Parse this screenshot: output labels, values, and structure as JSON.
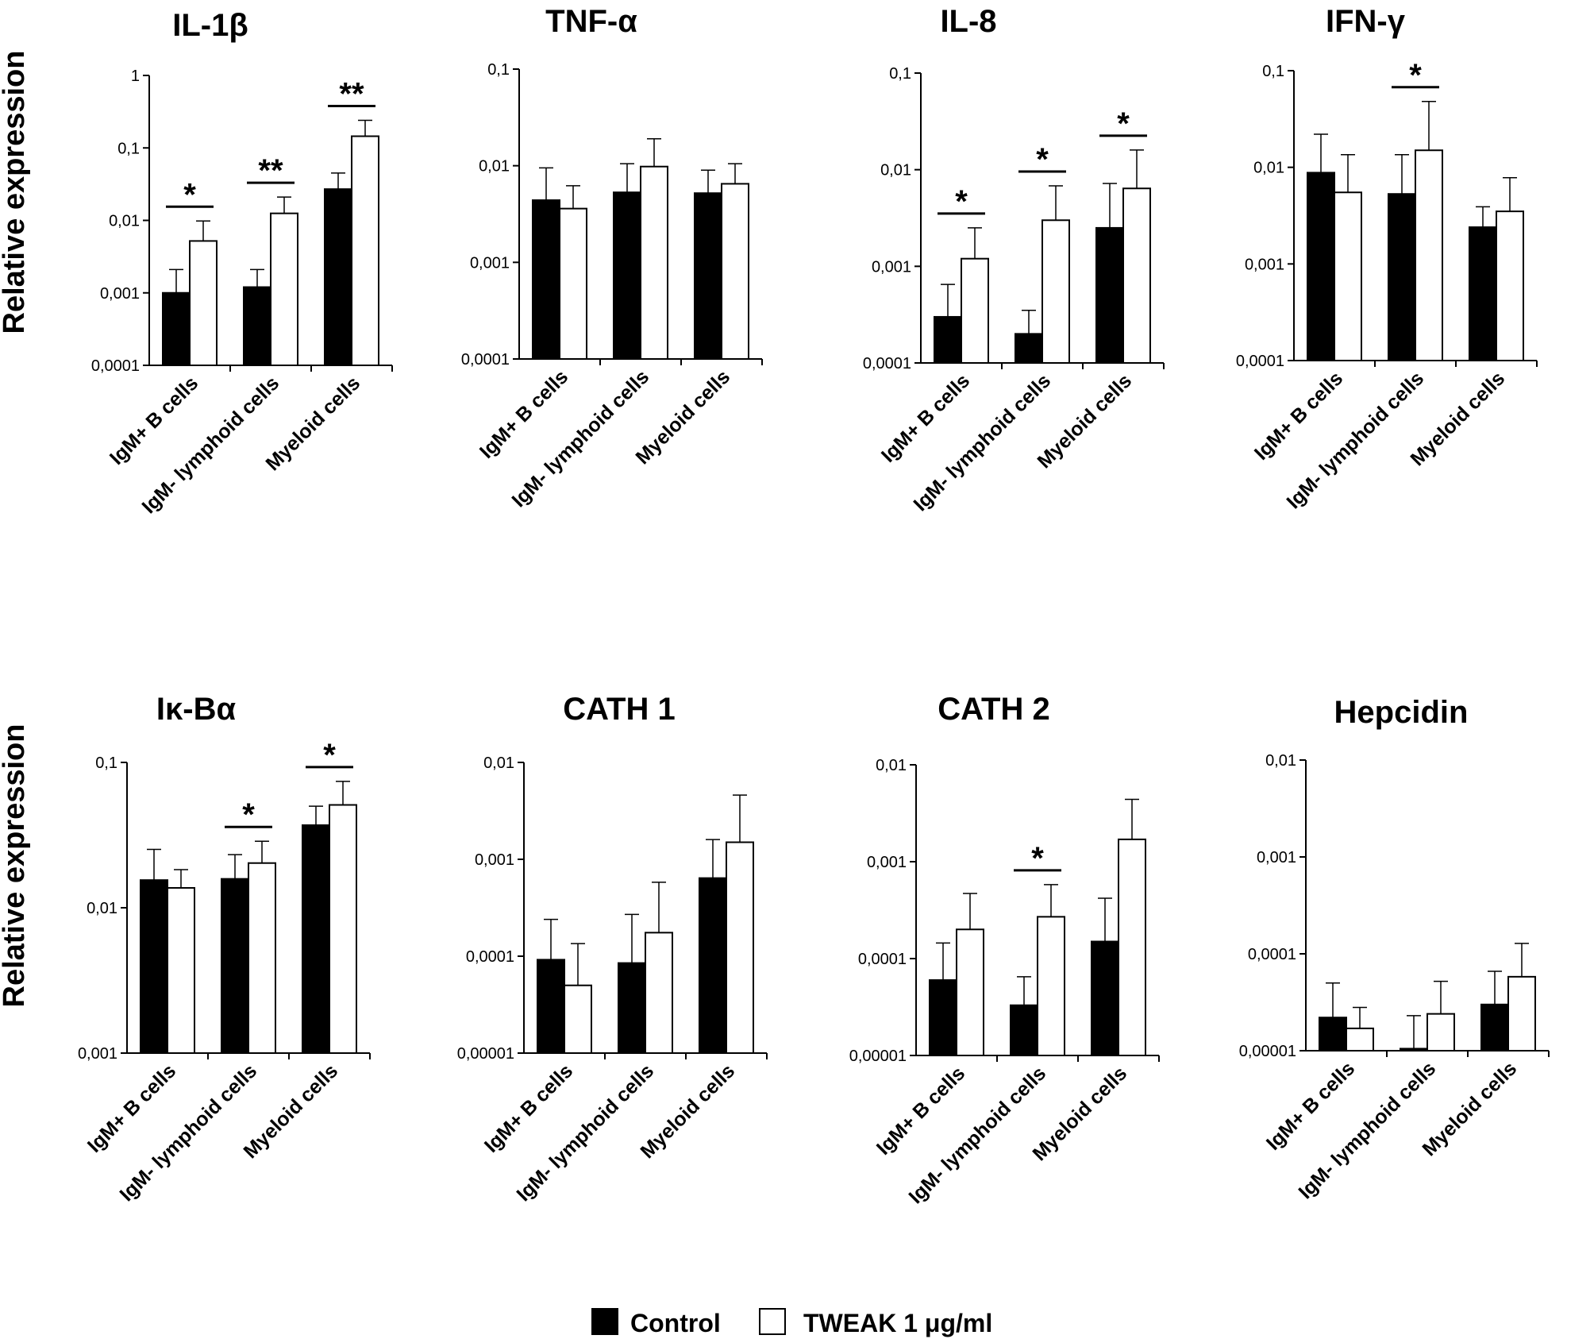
{
  "figure": {
    "y_axis_label": "Relative expression",
    "legend": [
      {
        "name": "Control",
        "color": "#000000"
      },
      {
        "name": "TWEAK 1 μg/ml",
        "color": "#ffffff"
      }
    ]
  },
  "chart_data": [
    {
      "type": "bar",
      "title": "IL-1β",
      "yscale": "log",
      "ylim": [
        0.0001,
        1
      ],
      "ytick_labels": [
        "0,0001",
        "0,001",
        "0,01",
        "0,1",
        "1"
      ],
      "categories": [
        "IgM+ B cells",
        "IgM- lymphoid cells",
        "Myeloid cells"
      ],
      "series": [
        {
          "name": "Control",
          "values": [
            0.001,
            0.0012,
            0.027
          ],
          "errors": [
            0.0021,
            0.0021,
            0.045
          ]
        },
        {
          "name": "TWEAK 1 μg/ml",
          "values": [
            0.0052,
            0.0125,
            0.145
          ],
          "errors": [
            0.0098,
            0.021,
            0.24
          ]
        }
      ],
      "significance": [
        "*",
        "**",
        "**"
      ]
    },
    {
      "type": "bar",
      "title": "TNF-α",
      "yscale": "log",
      "ylim": [
        0.0001,
        0.1
      ],
      "ytick_labels": [
        "0,0001",
        "0,001",
        "0,01",
        "0,1"
      ],
      "categories": [
        "IgM+ B cells",
        "IgM- lymphoid cells",
        "Myeloid cells"
      ],
      "series": [
        {
          "name": "Control",
          "values": [
            0.0044,
            0.0053,
            0.0052
          ],
          "errors": [
            0.0095,
            0.0105,
            0.009
          ]
        },
        {
          "name": "TWEAK 1 μg/ml",
          "values": [
            0.0036,
            0.0098,
            0.0065
          ],
          "errors": [
            0.0062,
            0.019,
            0.0105
          ]
        }
      ],
      "significance": [
        "",
        "",
        ""
      ]
    },
    {
      "type": "bar",
      "title": "IL-8",
      "yscale": "log",
      "ylim": [
        0.0001,
        0.1
      ],
      "ytick_labels": [
        "0,0001",
        "0,001",
        "0,01",
        "0,1"
      ],
      "categories": [
        "IgM+ B cells",
        "IgM- lymphoid cells",
        "Myeloid cells"
      ],
      "series": [
        {
          "name": "Control",
          "values": [
            0.0003,
            0.0002,
            0.0025
          ],
          "errors": [
            0.00065,
            0.00035,
            0.0072
          ]
        },
        {
          "name": "TWEAK 1 μg/ml",
          "values": [
            0.0012,
            0.003,
            0.0064
          ],
          "errors": [
            0.0025,
            0.0068,
            0.016
          ]
        }
      ],
      "significance": [
        "*",
        "*",
        "*"
      ]
    },
    {
      "type": "bar",
      "title": "IFN-γ",
      "yscale": "log",
      "ylim": [
        0.0001,
        0.1
      ],
      "ytick_labels": [
        "0,0001",
        "0,001",
        "0,01",
        "0,1"
      ],
      "categories": [
        "IgM+ B cells",
        "IgM- lymphoid cells",
        "Myeloid cells"
      ],
      "series": [
        {
          "name": "Control",
          "values": [
            0.0088,
            0.0053,
            0.0024
          ],
          "errors": [
            0.022,
            0.0135,
            0.0039
          ]
        },
        {
          "name": "TWEAK 1 μg/ml",
          "values": [
            0.0055,
            0.015,
            0.0035
          ],
          "errors": [
            0.0135,
            0.048,
            0.0078
          ]
        }
      ],
      "significance": [
        "",
        "*",
        ""
      ]
    },
    {
      "type": "bar",
      "title": "Iκ-Bα",
      "yscale": "log",
      "ylim": [
        0.001,
        0.1
      ],
      "ytick_labels": [
        "0,001",
        "0,01",
        "0,1"
      ],
      "categories": [
        "IgM+ B cells",
        "IgM- lymphoid cells",
        "Myeloid cells"
      ],
      "series": [
        {
          "name": "Control",
          "values": [
            0.0155,
            0.0158,
            0.037
          ],
          "errors": [
            0.0252,
            0.0232,
            0.05
          ]
        },
        {
          "name": "TWEAK 1 μg/ml",
          "values": [
            0.0137,
            0.0203,
            0.051
          ],
          "errors": [
            0.0183,
            0.0287,
            0.074
          ]
        }
      ],
      "significance": [
        "",
        "*",
        "*"
      ]
    },
    {
      "type": "bar",
      "title": "CATH 1",
      "yscale": "log",
      "ylim": [
        1e-05,
        0.01
      ],
      "ytick_labels": [
        "0,00001",
        "0,0001",
        "0,001",
        "0,01"
      ],
      "categories": [
        "IgM+ B cells",
        "IgM- lymphoid cells",
        "Myeloid cells"
      ],
      "series": [
        {
          "name": "Control",
          "values": [
            9.2e-05,
            8.5e-05,
            0.00064
          ],
          "errors": [
            0.00024,
            0.00027,
            0.0016
          ]
        },
        {
          "name": "TWEAK 1 μg/ml",
          "values": [
            5e-05,
            0.000175,
            0.0015
          ],
          "errors": [
            0.000135,
            0.00058,
            0.0046
          ]
        }
      ],
      "significance": [
        "",
        "",
        ""
      ]
    },
    {
      "type": "bar",
      "title": "CATH 2",
      "yscale": "log",
      "ylim": [
        1e-05,
        0.01
      ],
      "ytick_labels": [
        "0,00001",
        "0,0001",
        "0,001",
        "0,01"
      ],
      "categories": [
        "IgM+ B cells",
        "IgM- lymphoid cells",
        "Myeloid cells"
      ],
      "series": [
        {
          "name": "Control",
          "values": [
            6e-05,
            3.3e-05,
            0.00015
          ],
          "errors": [
            0.000145,
            6.5e-05,
            0.00042
          ]
        },
        {
          "name": "TWEAK 1 μg/ml",
          "values": [
            0.0002,
            0.00027,
            0.0017
          ],
          "errors": [
            0.00047,
            0.00058,
            0.0044
          ]
        }
      ],
      "significance": [
        "",
        "*",
        ""
      ]
    },
    {
      "type": "bar",
      "title": "Hepcidin",
      "yscale": "log",
      "ylim": [
        1e-05,
        0.01
      ],
      "ytick_labels": [
        "0,00001",
        "0,0001",
        "0,001",
        "0,01"
      ],
      "categories": [
        "IgM+ B cells",
        "IgM- lymphoid cells",
        "Myeloid cells"
      ],
      "series": [
        {
          "name": "Control",
          "values": [
            2.2e-05,
            1.05e-05,
            3e-05
          ],
          "errors": [
            5e-05,
            2.3e-05,
            6.6e-05
          ]
        },
        {
          "name": "TWEAK 1 μg/ml",
          "values": [
            1.7e-05,
            2.4e-05,
            5.8e-05
          ],
          "errors": [
            2.8e-05,
            5.2e-05,
            0.000128
          ]
        }
      ],
      "significance": [
        "",
        "",
        ""
      ]
    }
  ]
}
